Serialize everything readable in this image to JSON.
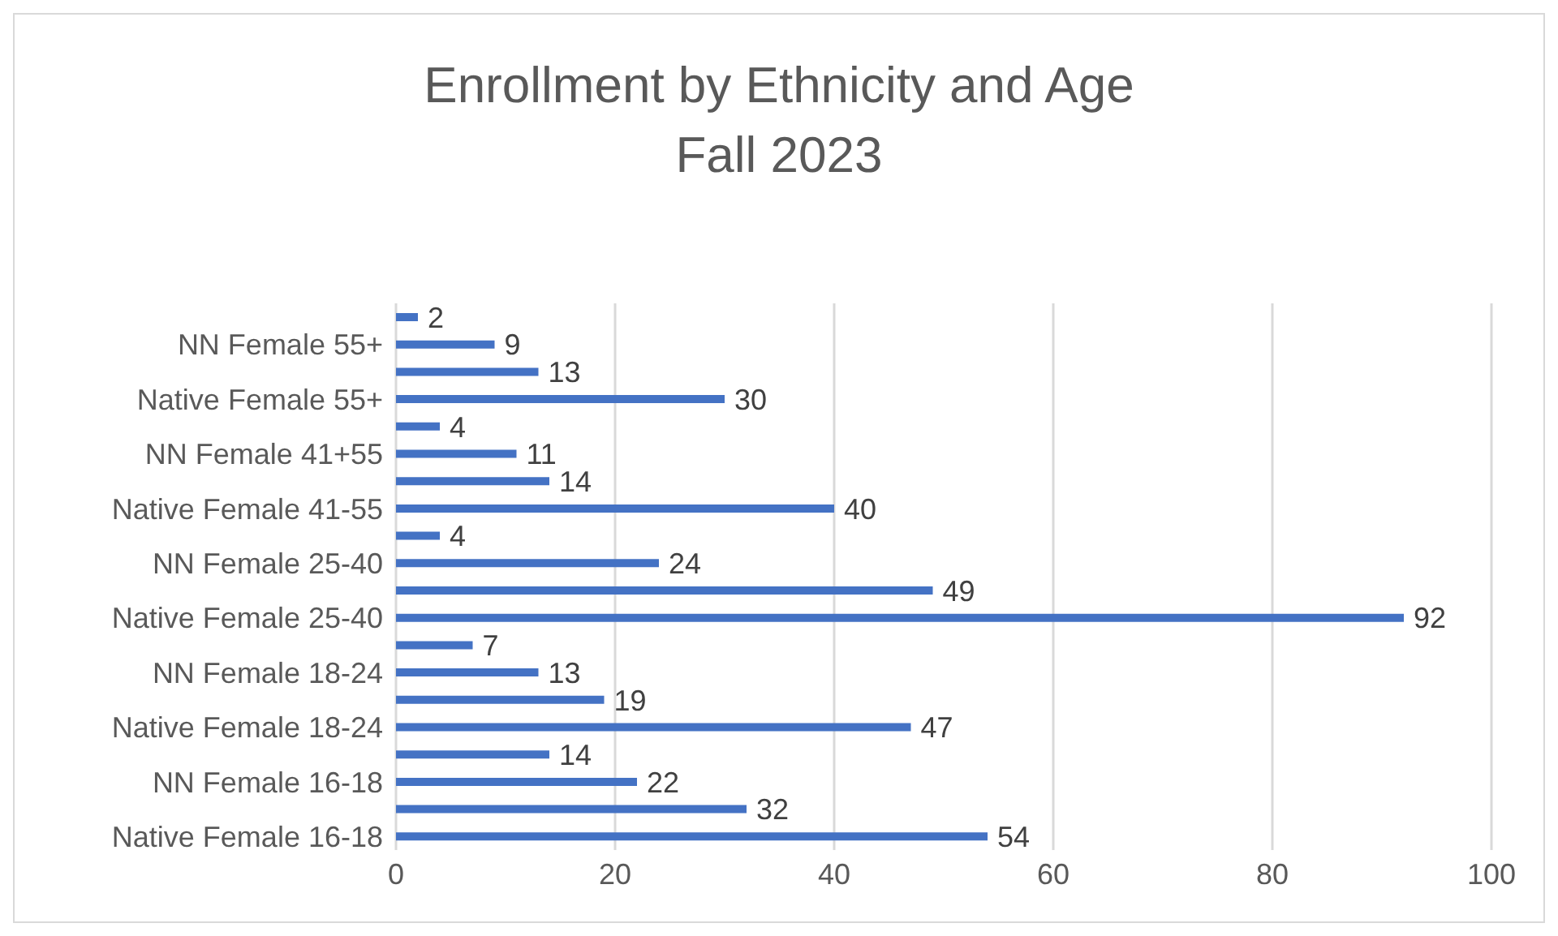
{
  "chart_data": {
    "type": "bar",
    "orientation": "horizontal",
    "title": "Enrollment by Ethnicity and Age",
    "subtitle": "Fall 2023",
    "categories": [
      null,
      "NN Female 55+",
      null,
      "Native Female 55+",
      null,
      "NN Female 41+55",
      null,
      "Native Female 41-55",
      null,
      "NN Female 25-40",
      null,
      "Native Female 25-40",
      null,
      "NN Female 18-24",
      null,
      "Native Female 18-24",
      null,
      "NN Female 16-18",
      null,
      "Native Female 16-18"
    ],
    "values": [
      2,
      9,
      13,
      30,
      4,
      11,
      14,
      40,
      4,
      24,
      49,
      92,
      7,
      13,
      19,
      47,
      14,
      22,
      32,
      54
    ],
    "color": "#4472c4",
    "xlim": [
      0,
      100
    ],
    "xticks": [
      0,
      20,
      40,
      60,
      80,
      100
    ],
    "grid": "x",
    "data_labels": true
  }
}
